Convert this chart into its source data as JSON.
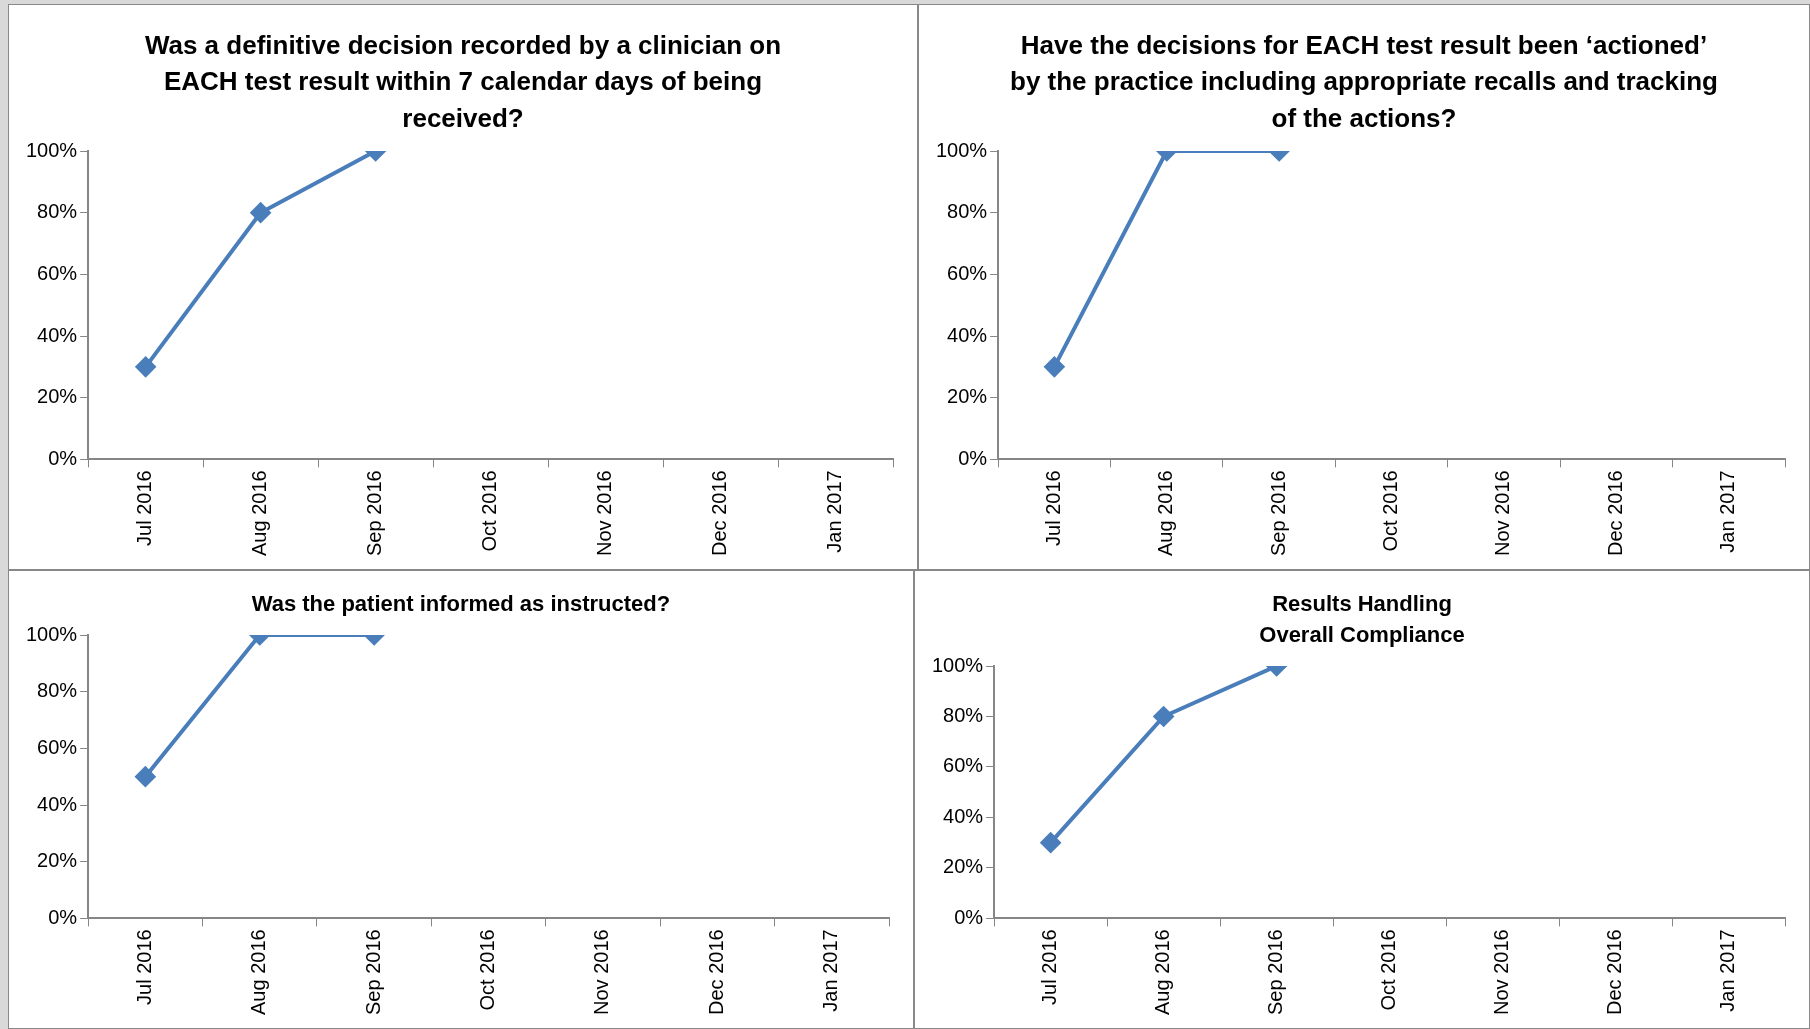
{
  "chart_data": [
    {
      "type": "line",
      "title": "Was a definitive decision recorded by a clinician  on\nEACH test result within 7 calendar days of being\nreceived?",
      "categories": [
        "Jul 2016",
        "Aug 2016",
        "Sep 2016",
        "Oct 2016",
        "Nov 2016",
        "Dec 2016",
        "Jan 2017"
      ],
      "series": [
        {
          "color": "#4a7ebb",
          "values": [
            30,
            80,
            100,
            null,
            null,
            null,
            null
          ]
        }
      ],
      "ylim": [
        0,
        100
      ],
      "yticks": [
        {
          "value": 0,
          "label": "0%"
        },
        {
          "value": 20,
          "label": "20%"
        },
        {
          "value": 40,
          "label": "40%"
        },
        {
          "value": 60,
          "label": "60%"
        },
        {
          "value": 80,
          "label": "80%"
        },
        {
          "value": 100,
          "label": "100%"
        }
      ],
      "marker": "diamond",
      "legend": false,
      "grid": false
    },
    {
      "type": "line",
      "title": "Have the decisions for EACH test result been ‘actioned’\nby the practice including appropriate recalls and tracking\nof the actions?",
      "categories": [
        "Jul 2016",
        "Aug 2016",
        "Sep 2016",
        "Oct 2016",
        "Nov 2016",
        "Dec 2016",
        "Jan 2017"
      ],
      "series": [
        {
          "color": "#4a7ebb",
          "values": [
            30,
            100,
            100,
            null,
            null,
            null,
            null
          ]
        }
      ],
      "ylim": [
        0,
        100
      ],
      "yticks": [
        {
          "value": 0,
          "label": "0%"
        },
        {
          "value": 20,
          "label": "20%"
        },
        {
          "value": 40,
          "label": "40%"
        },
        {
          "value": 60,
          "label": "60%"
        },
        {
          "value": 80,
          "label": "80%"
        },
        {
          "value": 100,
          "label": "100%"
        }
      ],
      "marker": "diamond",
      "legend": false,
      "grid": false
    },
    {
      "type": "line",
      "title": "Was the patient informed as instructed?",
      "categories": [
        "Jul 2016",
        "Aug 2016",
        "Sep 2016",
        "Oct 2016",
        "Nov 2016",
        "Dec 2016",
        "Jan 2017"
      ],
      "series": [
        {
          "color": "#4a7ebb",
          "values": [
            50,
            100,
            100,
            null,
            null,
            null,
            null
          ]
        }
      ],
      "ylim": [
        0,
        100
      ],
      "yticks": [
        {
          "value": 0,
          "label": "0%"
        },
        {
          "value": 20,
          "label": "20%"
        },
        {
          "value": 40,
          "label": "40%"
        },
        {
          "value": 60,
          "label": "60%"
        },
        {
          "value": 80,
          "label": "80%"
        },
        {
          "value": 100,
          "label": "100%"
        }
      ],
      "marker": "diamond",
      "legend": false,
      "grid": false
    },
    {
      "type": "line",
      "title": "Results Handling\nOverall Compliance",
      "categories": [
        "Jul 2016",
        "Aug 2016",
        "Sep 2016",
        "Oct 2016",
        "Nov 2016",
        "Dec 2016",
        "Jan 2017"
      ],
      "series": [
        {
          "color": "#4a7ebb",
          "values": [
            30,
            80,
            100,
            null,
            null,
            null,
            null
          ]
        }
      ],
      "ylim": [
        0,
        100
      ],
      "yticks": [
        {
          "value": 0,
          "label": "0%"
        },
        {
          "value": 20,
          "label": "20%"
        },
        {
          "value": 40,
          "label": "40%"
        },
        {
          "value": 60,
          "label": "60%"
        },
        {
          "value": 80,
          "label": "80%"
        },
        {
          "value": 100,
          "label": "100%"
        }
      ],
      "marker": "diamond",
      "legend": false,
      "grid": false
    }
  ]
}
